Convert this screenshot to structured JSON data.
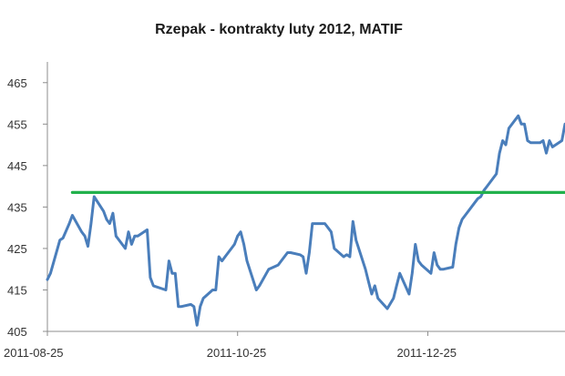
{
  "chart_data": {
    "type": "line",
    "title": "Rzepak - kontrakty luty 2012, MATIF",
    "xlabel": "",
    "ylabel": "",
    "ylim": [
      405,
      470
    ],
    "yticks": [
      405,
      415,
      425,
      435,
      445,
      455,
      465
    ],
    "xlim": [
      "2011-08-25",
      "2012-02-07"
    ],
    "xticks": [
      "2011-08-25",
      "2011-10-25",
      "2011-12-25"
    ],
    "grid": false,
    "legend": "none",
    "series": [
      {
        "color": "#4a7ebb",
        "points": [
          [
            "2011-08-25",
            417.5
          ],
          [
            "2011-08-26",
            419
          ],
          [
            "2011-08-29",
            427
          ],
          [
            "2011-08-30",
            427.5
          ],
          [
            "2011-09-01",
            431
          ],
          [
            "2011-09-02",
            433
          ],
          [
            "2011-09-05",
            429
          ],
          [
            "2011-09-06",
            428
          ],
          [
            "2011-09-07",
            425.5
          ],
          [
            "2011-09-08",
            431
          ],
          [
            "2011-09-09",
            437.5
          ],
          [
            "2011-09-12",
            434
          ],
          [
            "2011-09-13",
            432
          ],
          [
            "2011-09-14",
            431
          ],
          [
            "2011-09-15",
            433.5
          ],
          [
            "2011-09-16",
            428
          ],
          [
            "2011-09-19",
            425
          ],
          [
            "2011-09-20",
            429
          ],
          [
            "2011-09-21",
            426
          ],
          [
            "2011-09-22",
            428
          ],
          [
            "2011-09-23",
            428
          ],
          [
            "2011-09-26",
            429.5
          ],
          [
            "2011-09-27",
            418
          ],
          [
            "2011-09-28",
            416
          ],
          [
            "2011-10-02",
            415
          ],
          [
            "2011-10-03",
            422
          ],
          [
            "2011-10-04",
            419
          ],
          [
            "2011-10-05",
            419
          ],
          [
            "2011-10-06",
            411
          ],
          [
            "2011-10-07",
            411
          ],
          [
            "2011-10-10",
            411.5
          ],
          [
            "2011-10-11",
            411
          ],
          [
            "2011-10-12",
            406.5
          ],
          [
            "2011-10-13",
            411
          ],
          [
            "2011-10-14",
            413
          ],
          [
            "2011-10-17",
            415
          ],
          [
            "2011-10-18",
            415
          ],
          [
            "2011-10-19",
            423
          ],
          [
            "2011-10-20",
            422
          ],
          [
            "2011-10-21",
            423
          ],
          [
            "2011-10-24",
            426
          ],
          [
            "2011-10-25",
            428
          ],
          [
            "2011-10-26",
            429
          ],
          [
            "2011-10-27",
            426
          ],
          [
            "2011-10-28",
            422
          ],
          [
            "2011-10-31",
            415
          ],
          [
            "2011-11-01",
            416
          ],
          [
            "2011-11-04",
            420
          ],
          [
            "2011-11-07",
            421
          ],
          [
            "2011-11-08",
            422
          ],
          [
            "2011-11-10",
            424
          ],
          [
            "2011-11-11",
            424
          ],
          [
            "2011-11-14",
            423.5
          ],
          [
            "2011-11-15",
            423
          ],
          [
            "2011-11-16",
            419
          ],
          [
            "2011-11-17",
            424
          ],
          [
            "2011-11-18",
            431
          ],
          [
            "2011-11-21",
            431
          ],
          [
            "2011-11-22",
            431
          ],
          [
            "2011-11-23",
            430
          ],
          [
            "2011-11-24",
            429
          ],
          [
            "2011-11-25",
            425
          ],
          [
            "2011-11-28",
            423
          ],
          [
            "2011-11-29",
            423.5
          ],
          [
            "2011-11-30",
            423
          ],
          [
            "2011-12-01",
            431.5
          ],
          [
            "2011-12-02",
            427
          ],
          [
            "2011-12-05",
            420
          ],
          [
            "2011-12-06",
            417
          ],
          [
            "2011-12-07",
            414
          ],
          [
            "2011-12-08",
            416
          ],
          [
            "2011-12-09",
            413
          ],
          [
            "2011-12-12",
            410.5
          ],
          [
            "2011-12-14",
            413
          ],
          [
            "2011-12-15",
            416
          ],
          [
            "2011-12-16",
            419
          ],
          [
            "2011-12-19",
            414
          ],
          [
            "2011-12-20",
            419
          ],
          [
            "2011-12-21",
            426
          ],
          [
            "2011-12-22",
            422
          ],
          [
            "2011-12-23",
            421
          ],
          [
            "2011-12-26",
            419
          ],
          [
            "2011-12-27",
            424
          ],
          [
            "2011-12-28",
            421
          ],
          [
            "2011-12-29",
            420
          ],
          [
            "2011-12-30",
            420
          ],
          [
            "2012-01-02",
            420.5
          ],
          [
            "2012-01-03",
            426
          ],
          [
            "2012-01-04",
            430
          ],
          [
            "2012-01-05",
            432
          ],
          [
            "2012-01-06",
            433
          ],
          [
            "2012-01-09",
            436
          ],
          [
            "2012-01-10",
            437
          ],
          [
            "2012-01-11",
            437.5
          ],
          [
            "2012-01-12",
            439
          ],
          [
            "2012-01-13",
            440
          ],
          [
            "2012-01-16",
            443
          ],
          [
            "2012-01-17",
            448
          ],
          [
            "2012-01-18",
            451
          ],
          [
            "2012-01-19",
            450
          ],
          [
            "2012-01-20",
            454
          ],
          [
            "2012-01-23",
            457
          ],
          [
            "2012-01-24",
            455
          ],
          [
            "2012-01-25",
            455
          ],
          [
            "2012-01-26",
            451
          ],
          [
            "2012-01-27",
            450.5
          ],
          [
            "2012-01-30",
            450.5
          ],
          [
            "2012-01-31",
            451
          ],
          [
            "2012-02-01",
            448
          ],
          [
            "2012-02-02",
            451
          ],
          [
            "2012-02-03",
            449.5
          ],
          [
            "2012-02-06",
            451
          ],
          [
            "2012-02-07",
            455
          ]
        ]
      },
      {
        "color": "#22b14c",
        "points": [
          [
            "2011-09-02",
            438.5
          ],
          [
            "2012-02-07",
            438.5
          ]
        ]
      }
    ]
  }
}
